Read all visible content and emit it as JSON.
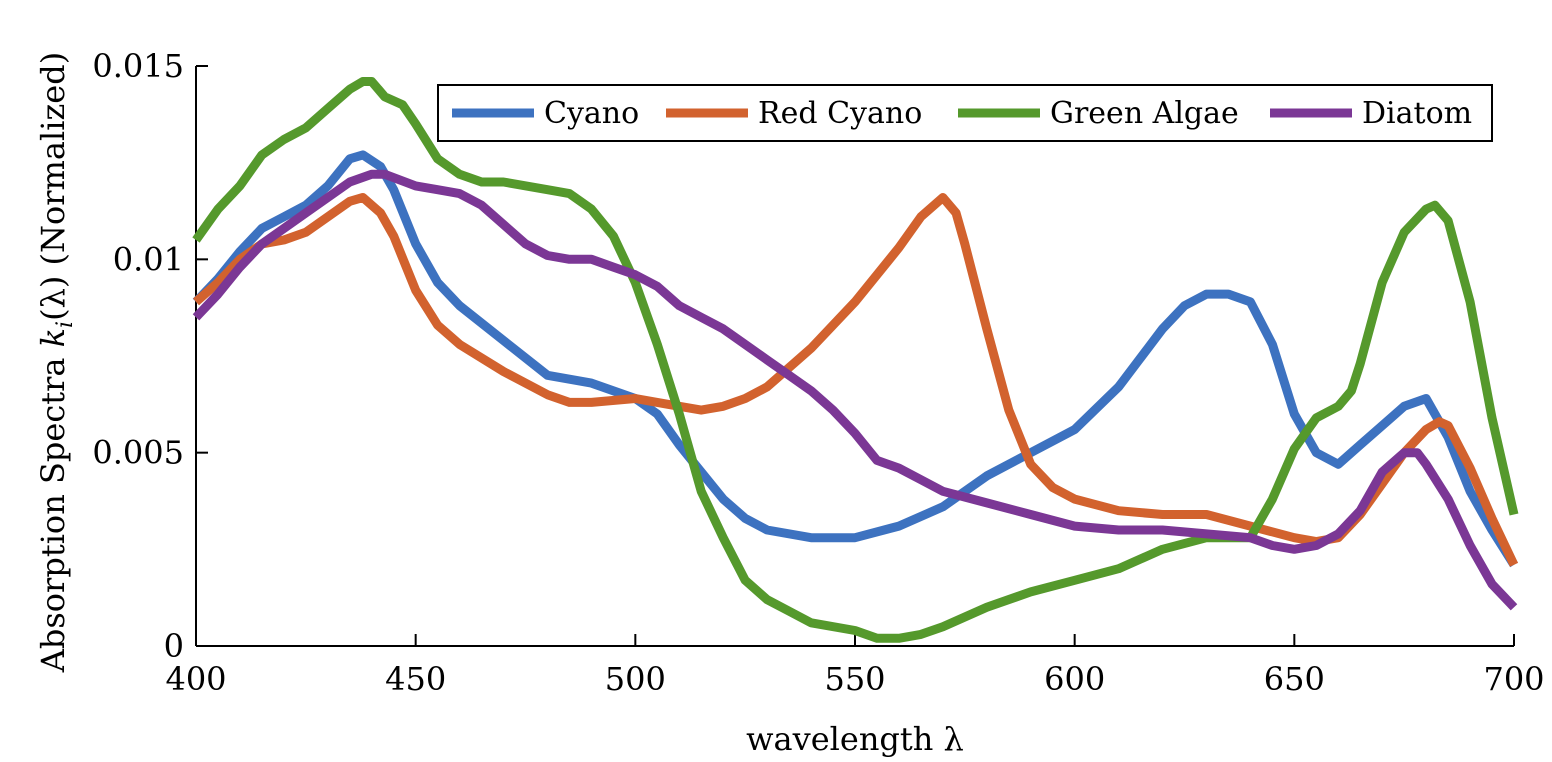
{
  "chart_data": {
    "type": "line",
    "title": "",
    "xlabel": "wavelength λ",
    "ylabel_prefix": "Absorption Spectra ",
    "ylabel_var": "k",
    "ylabel_sub": "i",
    "ylabel_suffix": "(λ) (Normalized)",
    "xlim": [
      400,
      700
    ],
    "ylim": [
      0,
      0.015
    ],
    "xticks": [
      400,
      450,
      500,
      550,
      600,
      650,
      700
    ],
    "xtick_labels": [
      "400",
      "450",
      "500",
      "550",
      "600",
      "650",
      "700"
    ],
    "yticks": [
      0,
      0.005,
      0.01,
      0.015
    ],
    "ytick_labels": [
      "0",
      "0.005",
      "0.01",
      "0.015"
    ],
    "grid": false,
    "legend_position": "top-right",
    "series": [
      {
        "name": "Cyano",
        "color": "#3d72c0",
        "x": [
          400,
          405,
          410,
          415,
          420,
          425,
          430,
          435,
          438,
          442,
          445,
          450,
          455,
          460,
          470,
          480,
          490,
          500,
          505,
          510,
          515,
          520,
          525,
          530,
          540,
          550,
          560,
          570,
          580,
          590,
          600,
          610,
          620,
          625,
          630,
          635,
          640,
          645,
          650,
          655,
          660,
          665,
          670,
          675,
          680,
          685,
          690,
          695,
          700
        ],
        "values": [
          0.0089,
          0.0095,
          0.0102,
          0.0108,
          0.0111,
          0.0114,
          0.0119,
          0.0126,
          0.0127,
          0.0124,
          0.0118,
          0.0104,
          0.0094,
          0.0088,
          0.0079,
          0.007,
          0.0068,
          0.0064,
          0.006,
          0.0052,
          0.0045,
          0.0038,
          0.0033,
          0.003,
          0.0028,
          0.0028,
          0.0031,
          0.0036,
          0.0044,
          0.005,
          0.0056,
          0.0067,
          0.0082,
          0.0088,
          0.0091,
          0.0091,
          0.0089,
          0.0078,
          0.006,
          0.005,
          0.0047,
          0.0052,
          0.0057,
          0.0062,
          0.0064,
          0.0054,
          0.004,
          0.003,
          0.0021
        ]
      },
      {
        "name": "Red Cyano",
        "color": "#d2622e",
        "x": [
          400,
          405,
          410,
          415,
          420,
          425,
          430,
          435,
          438,
          442,
          445,
          450,
          455,
          460,
          470,
          480,
          485,
          490,
          500,
          505,
          510,
          515,
          520,
          525,
          530,
          540,
          550,
          560,
          565,
          570,
          573,
          575,
          580,
          585,
          590,
          595,
          600,
          610,
          620,
          630,
          640,
          650,
          655,
          660,
          665,
          670,
          675,
          680,
          683,
          685,
          690,
          695,
          700
        ],
        "values": [
          0.0089,
          0.0094,
          0.01,
          0.0104,
          0.0105,
          0.0107,
          0.0111,
          0.0115,
          0.0116,
          0.0112,
          0.0106,
          0.0092,
          0.0083,
          0.0078,
          0.0071,
          0.0065,
          0.0063,
          0.0063,
          0.0064,
          0.0063,
          0.0062,
          0.0061,
          0.0062,
          0.0064,
          0.0067,
          0.0077,
          0.0089,
          0.0103,
          0.0111,
          0.0116,
          0.0112,
          0.0104,
          0.0082,
          0.0061,
          0.0047,
          0.0041,
          0.0038,
          0.0035,
          0.0034,
          0.0034,
          0.0031,
          0.0028,
          0.0027,
          0.0028,
          0.0034,
          0.0042,
          0.005,
          0.0056,
          0.0058,
          0.0057,
          0.0046,
          0.0033,
          0.0021
        ]
      },
      {
        "name": "Green Algae",
        "color": "#55992c",
        "x": [
          400,
          405,
          410,
          415,
          420,
          425,
          430,
          435,
          438,
          440,
          443,
          447,
          450,
          455,
          460,
          465,
          470,
          480,
          485,
          490,
          495,
          500,
          505,
          510,
          515,
          520,
          525,
          530,
          535,
          540,
          550,
          555,
          560,
          565,
          570,
          580,
          590,
          600,
          610,
          620,
          630,
          640,
          645,
          650,
          655,
          660,
          663,
          665,
          670,
          675,
          680,
          682,
          685,
          690,
          695,
          700
        ],
        "values": [
          0.0105,
          0.0113,
          0.0119,
          0.0127,
          0.0131,
          0.0134,
          0.0139,
          0.0144,
          0.0146,
          0.0146,
          0.0142,
          0.014,
          0.0135,
          0.0126,
          0.0122,
          0.012,
          0.012,
          0.0118,
          0.0117,
          0.0113,
          0.0106,
          0.0094,
          0.0078,
          0.006,
          0.004,
          0.0028,
          0.0017,
          0.0012,
          0.0009,
          0.0006,
          0.0004,
          0.0002,
          0.0002,
          0.0003,
          0.0005,
          0.001,
          0.0014,
          0.0017,
          0.002,
          0.0025,
          0.0028,
          0.0028,
          0.0038,
          0.0051,
          0.0059,
          0.0062,
          0.0066,
          0.0073,
          0.0094,
          0.0107,
          0.0113,
          0.0114,
          0.011,
          0.0089,
          0.0059,
          0.0034
        ]
      },
      {
        "name": "Diatom",
        "color": "#7b3795",
        "x": [
          400,
          405,
          410,
          415,
          420,
          425,
          430,
          435,
          440,
          443,
          450,
          455,
          460,
          465,
          470,
          475,
          480,
          485,
          490,
          495,
          500,
          505,
          510,
          515,
          520,
          525,
          530,
          535,
          540,
          545,
          550,
          555,
          560,
          565,
          570,
          580,
          590,
          600,
          610,
          620,
          630,
          640,
          645,
          650,
          655,
          660,
          665,
          670,
          675,
          678,
          680,
          685,
          690,
          695,
          700
        ],
        "values": [
          0.0085,
          0.0091,
          0.0098,
          0.0104,
          0.0108,
          0.0112,
          0.0116,
          0.012,
          0.0122,
          0.0122,
          0.0119,
          0.0118,
          0.0117,
          0.0114,
          0.0109,
          0.0104,
          0.0101,
          0.01,
          0.01,
          0.0098,
          0.0096,
          0.0093,
          0.0088,
          0.0085,
          0.0082,
          0.0078,
          0.0074,
          0.007,
          0.0066,
          0.0061,
          0.0055,
          0.0048,
          0.0046,
          0.0043,
          0.004,
          0.0037,
          0.0034,
          0.0031,
          0.003,
          0.003,
          0.0029,
          0.0028,
          0.0026,
          0.0025,
          0.0026,
          0.0029,
          0.0035,
          0.0045,
          0.005,
          0.005,
          0.0047,
          0.0038,
          0.0026,
          0.0016,
          0.001
        ]
      }
    ]
  }
}
